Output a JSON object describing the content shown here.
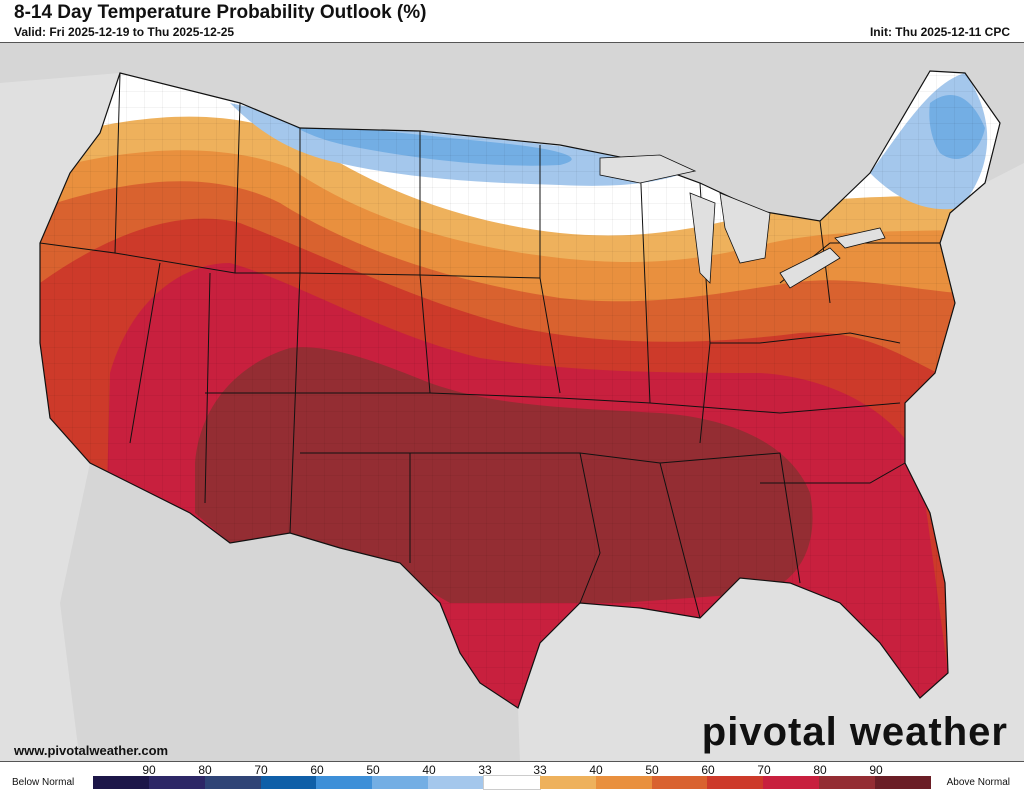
{
  "header": {
    "title": "8-14 Day Temperature Probability Outlook (%)",
    "valid": "Valid: Fri 2025-12-19 to Thu 2025-12-25",
    "init": "Init: Thu 2025-12-11 CPC"
  },
  "footer": {
    "url": "www.pivotalweather.com",
    "brand": "pivotal weather"
  },
  "legend": {
    "below_label": "Below Normal",
    "above_label": "Above Normal",
    "ticks": [
      "90",
      "80",
      "70",
      "60",
      "50",
      "40",
      "33",
      "33",
      "40",
      "50",
      "60",
      "70",
      "80",
      "90"
    ],
    "colors": [
      "#1c1648",
      "#2d2766",
      "#2f4476",
      "#0f5fa8",
      "#3d8fd8",
      "#73aee4",
      "#a4c7ec",
      "#ffffff",
      "#eeb15c",
      "#e9903e",
      "#d9622f",
      "#cd3a2a",
      "#c8203e",
      "#942d33",
      "#6b1e26"
    ]
  },
  "map": {
    "land_color": "#ffffff",
    "background_color": "#e0e0e0",
    "categories": [
      {
        "id": "above-33-40",
        "color": "#eeb15c",
        "label": "Above 33-40"
      },
      {
        "id": "above-40-50",
        "color": "#e9903e",
        "label": "Above 40-50"
      },
      {
        "id": "above-50-60",
        "color": "#d9622f",
        "label": "Above 50-60"
      },
      {
        "id": "above-60-70",
        "color": "#cd3a2a",
        "label": "Above 60-70"
      },
      {
        "id": "above-70-80",
        "color": "#c8203e",
        "label": "Above 70-80"
      },
      {
        "id": "above-80-90",
        "color": "#942d33",
        "label": "Above 80-90"
      },
      {
        "id": "below-33-40",
        "color": "#a4c7ec",
        "label": "Below 33-40"
      },
      {
        "id": "below-40-50",
        "color": "#73aee4",
        "label": "Below 40-50"
      }
    ]
  }
}
